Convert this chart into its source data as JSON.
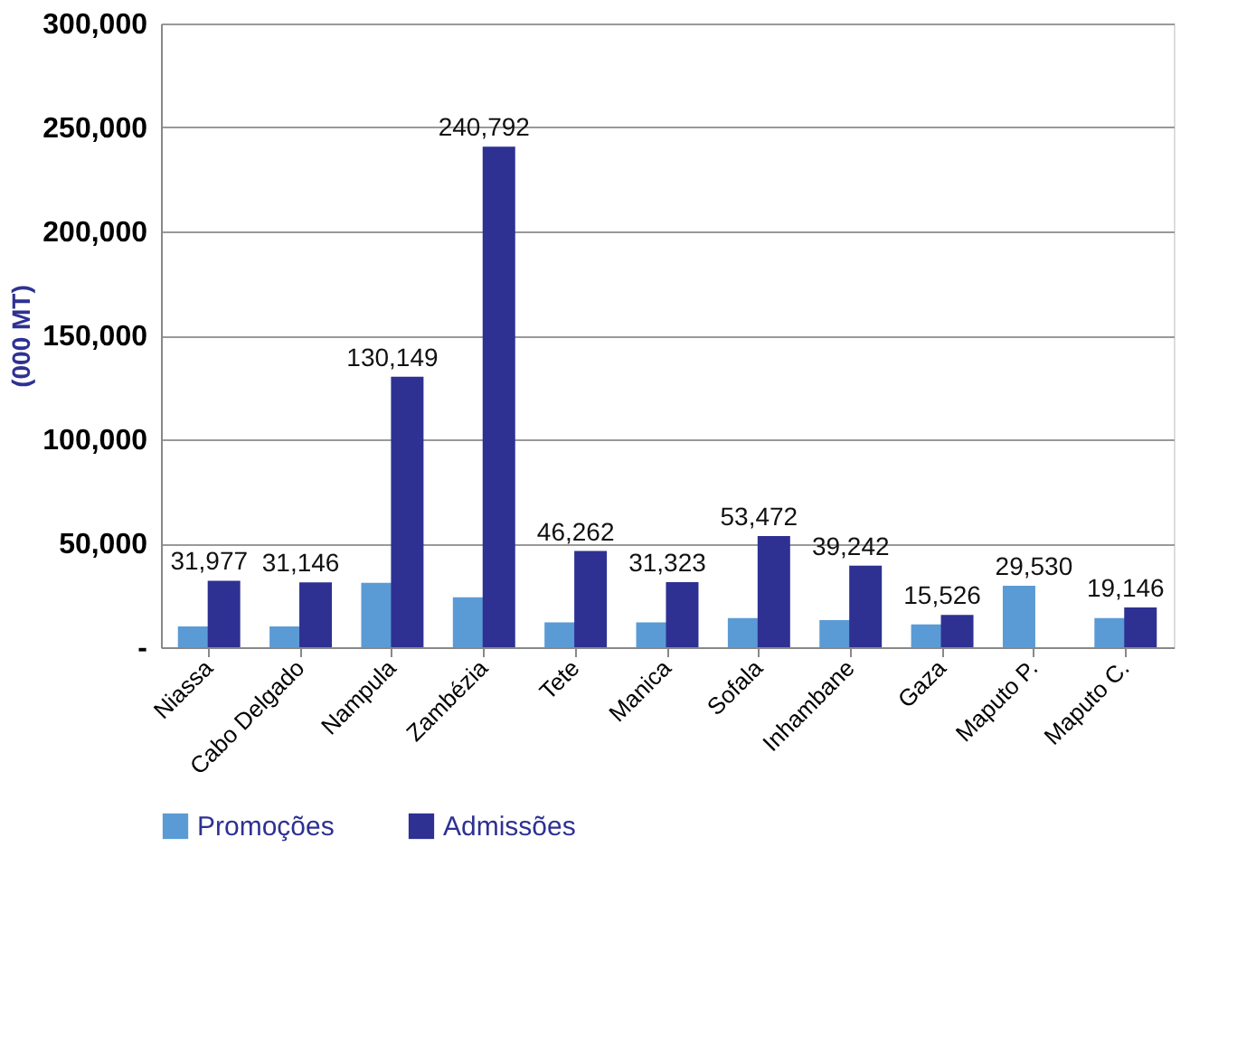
{
  "chart_data": {
    "type": "bar",
    "ylabel": "(000 MT)",
    "categories": [
      "Niassa",
      "Cabo Delgado",
      "Nampula",
      "Zambézia",
      "Tete",
      "Manica",
      "Sofala",
      "Inhambane",
      "Gaza",
      "Maputo P.",
      "Maputo C."
    ],
    "series": [
      {
        "name": "Promoções",
        "color": "#5b9bd5",
        "values": [
          10000,
          10000,
          31000,
          24000,
          12000,
          12000,
          14000,
          13000,
          11000,
          29530,
          14000
        ],
        "value_labels": [
          null,
          null,
          null,
          null,
          null,
          null,
          null,
          null,
          null,
          "29,530",
          null
        ]
      },
      {
        "name": "Admissões",
        "color": "#2e3192",
        "values": [
          31977,
          31146,
          130149,
          240792,
          46262,
          31323,
          53472,
          39242,
          15526,
          null,
          19146
        ],
        "value_labels": [
          "31,977",
          "31,146",
          "130,149",
          "240,792",
          "46,262",
          "31,323",
          "53,472",
          "39,242",
          "15,526",
          null,
          "19,146"
        ]
      }
    ],
    "ylim": [
      0,
      300000
    ],
    "yticks": [
      {
        "value": 0,
        "label": "-"
      },
      {
        "value": 50000,
        "label": "50,000"
      },
      {
        "value": 100000,
        "label": "100,000"
      },
      {
        "value": 150000,
        "label": "150,000"
      },
      {
        "value": 200000,
        "label": "200,000"
      },
      {
        "value": 250000,
        "label": "250,000"
      },
      {
        "value": 300000,
        "label": "300,000"
      }
    ],
    "grid": "y",
    "legend": "bottom"
  }
}
